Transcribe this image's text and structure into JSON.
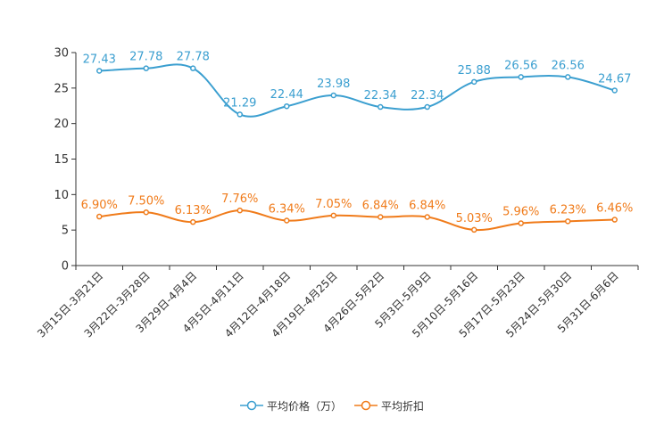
{
  "chart_data": {
    "type": "line",
    "categories": [
      "3月15日-3月21日",
      "3月22日-3月28日",
      "3月29日-4月4日",
      "4月5日-4月11日",
      "4月12日-4月18日",
      "4月19日-4月25日",
      "4月26日-5月2日",
      "5月3日-5月9日",
      "5月10日-5月16日",
      "5月17日-5月23日",
      "5月24日-5月30日",
      "5月31日-6月6日"
    ],
    "series": [
      {
        "name": "平均价格（万）",
        "color": "#3b9fd0",
        "values": [
          27.43,
          27.78,
          27.78,
          21.29,
          22.44,
          23.98,
          22.34,
          22.34,
          25.88,
          26.56,
          26.56,
          24.67
        ],
        "labels": [
          "27.43",
          "27.78",
          "27.78",
          "21.29",
          "22.44",
          "23.98",
          "22.34",
          "22.34",
          "25.88",
          "26.56",
          "26.56",
          "24.67"
        ]
      },
      {
        "name": "平均折扣",
        "color": "#f07b1a",
        "values": [
          6.9,
          7.5,
          6.13,
          7.76,
          6.34,
          7.05,
          6.84,
          6.84,
          5.03,
          5.96,
          6.23,
          6.46
        ],
        "labels": [
          "6.90%",
          "7.50%",
          "6.13%",
          "7.76%",
          "6.34%",
          "7.05%",
          "6.84%",
          "6.84%",
          "5.03%",
          "5.96%",
          "6.23%",
          "6.46%"
        ]
      }
    ],
    "ylim": [
      0,
      30
    ],
    "yticks": [
      "0",
      "5",
      "10",
      "15",
      "20",
      "25",
      "30"
    ],
    "title": "",
    "xlabel": "",
    "ylabel": "",
    "legend_position": "bottom-center"
  }
}
